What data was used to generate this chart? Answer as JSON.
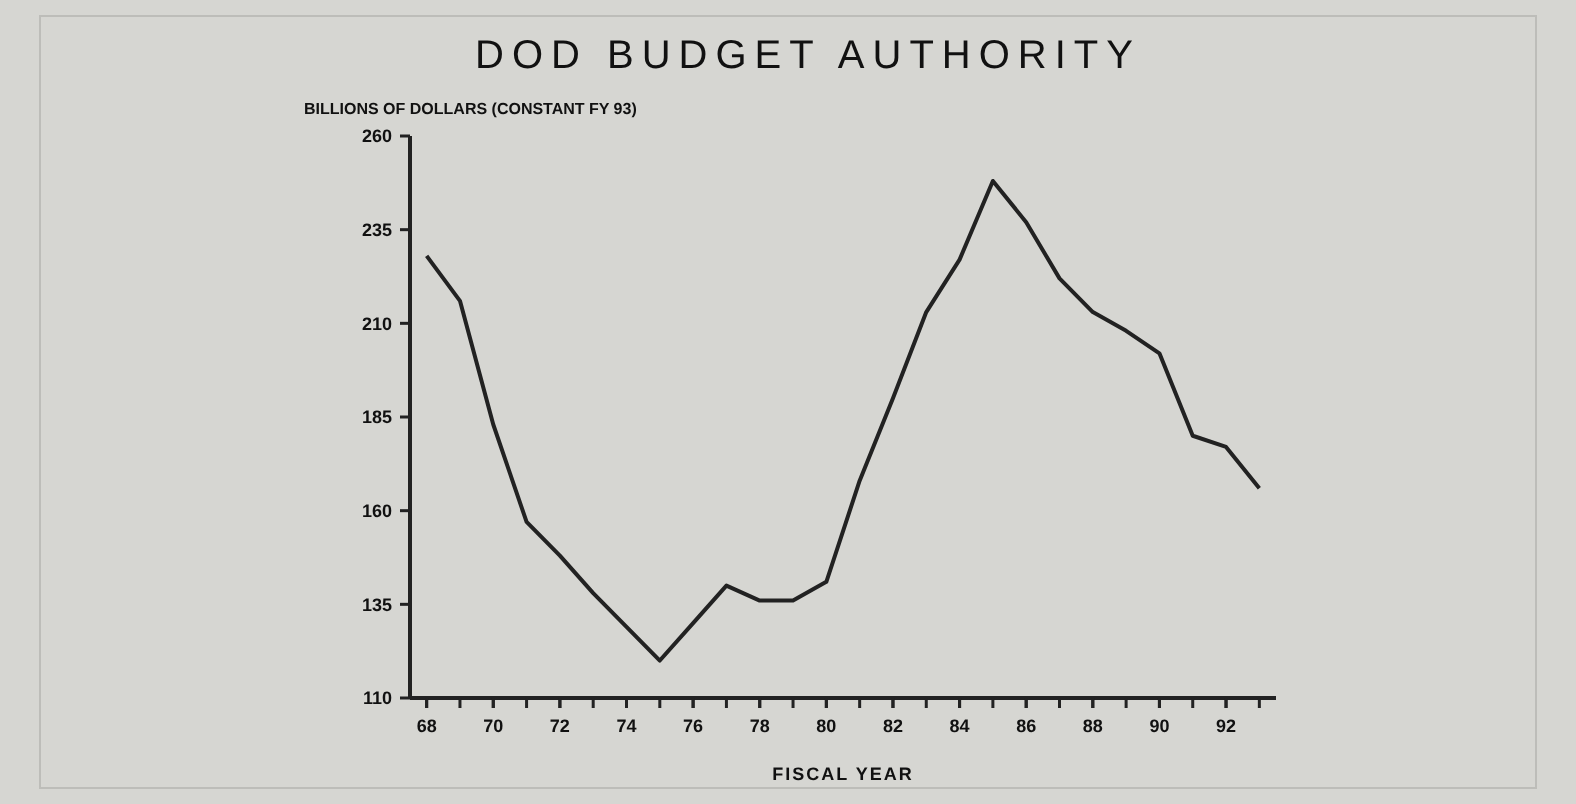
{
  "chart_data": {
    "type": "line",
    "title": "DOD BUDGET AUTHORITY",
    "ylabel": "BILLIONS OF DOLLARS (CONSTANT FY 93)",
    "xlabel": "FISCAL YEAR",
    "x": [
      68,
      69,
      70,
      71,
      72,
      73,
      74,
      75,
      76,
      77,
      78,
      79,
      80,
      81,
      82,
      83,
      84,
      85,
      86,
      87,
      88,
      89,
      90,
      91,
      92,
      93
    ],
    "series": [
      {
        "color": "#222222",
        "values": [
          228,
          216,
          183,
          157,
          148,
          138,
          129,
          120,
          130,
          140,
          136,
          136,
          141,
          168,
          190,
          213,
          227,
          248,
          237,
          222,
          213,
          208,
          202,
          180,
          177,
          166
        ]
      }
    ],
    "xlim": [
      67.5,
      93.5
    ],
    "xticks": [
      68,
      70,
      72,
      74,
      76,
      78,
      80,
      82,
      84,
      86,
      88,
      90,
      92
    ],
    "ylim": [
      110,
      260
    ],
    "yticks": [
      110,
      135,
      160,
      185,
      210,
      235,
      260
    ],
    "grid": false,
    "marker": "none",
    "line_style": "solid"
  }
}
